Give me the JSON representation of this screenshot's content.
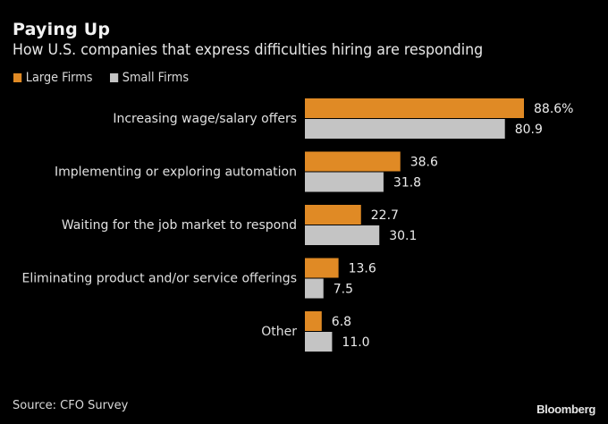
{
  "chart_data": {
    "type": "bar",
    "orientation": "horizontal",
    "title": "Paying Up",
    "subtitle": "How U.S. companies that express difficulties hiring are responding",
    "categories": [
      "Increasing wage/salary offers",
      "Implementing or exploring automation",
      "Waiting for the job market to respond",
      "Eliminating product and/or service offerings",
      "Other"
    ],
    "series": [
      {
        "name": "Large Firms",
        "color": "#e08a25",
        "values": [
          88.6,
          38.6,
          22.7,
          13.6,
          6.8
        ],
        "labels": [
          "88.6%",
          "38.6",
          "22.7",
          "13.6",
          "6.8"
        ]
      },
      {
        "name": "Small Firms",
        "color": "#c4c4c4",
        "values": [
          80.9,
          31.8,
          30.1,
          7.5,
          11.0
        ],
        "labels": [
          "80.9",
          "31.8",
          "30.1",
          "7.5",
          "11.0"
        ]
      }
    ],
    "xlabel": "",
    "ylabel": "",
    "unit": "%",
    "xlim": [
      0,
      100
    ],
    "grid": false,
    "legend_position": "top-left"
  },
  "source": "Source: CFO Survey",
  "brand": "Bloomberg"
}
